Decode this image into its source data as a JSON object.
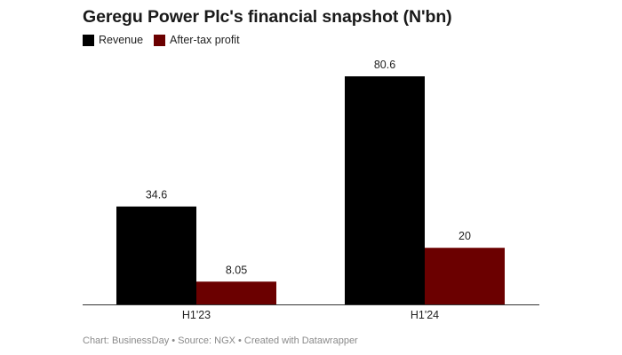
{
  "chart_data": {
    "type": "bar",
    "title": "Geregu Power Plc's financial snapshot (N'bn)",
    "categories": [
      "H1'23",
      "H1'24"
    ],
    "series": [
      {
        "name": "Revenue",
        "values": [
          34.6,
          80.6
        ],
        "labels": [
          "34.6",
          "80.6"
        ],
        "color": "#000000"
      },
      {
        "name": "After-tax profit",
        "values": [
          8.05,
          20
        ],
        "labels": [
          "8.05",
          "20"
        ],
        "color": "#6b0000"
      }
    ],
    "ylim": [
      0,
      80.6
    ],
    "grid": false,
    "legend_position": "top-left"
  },
  "footer": "Chart: BusinessDay • Source: NGX • Created with Datawrapper"
}
